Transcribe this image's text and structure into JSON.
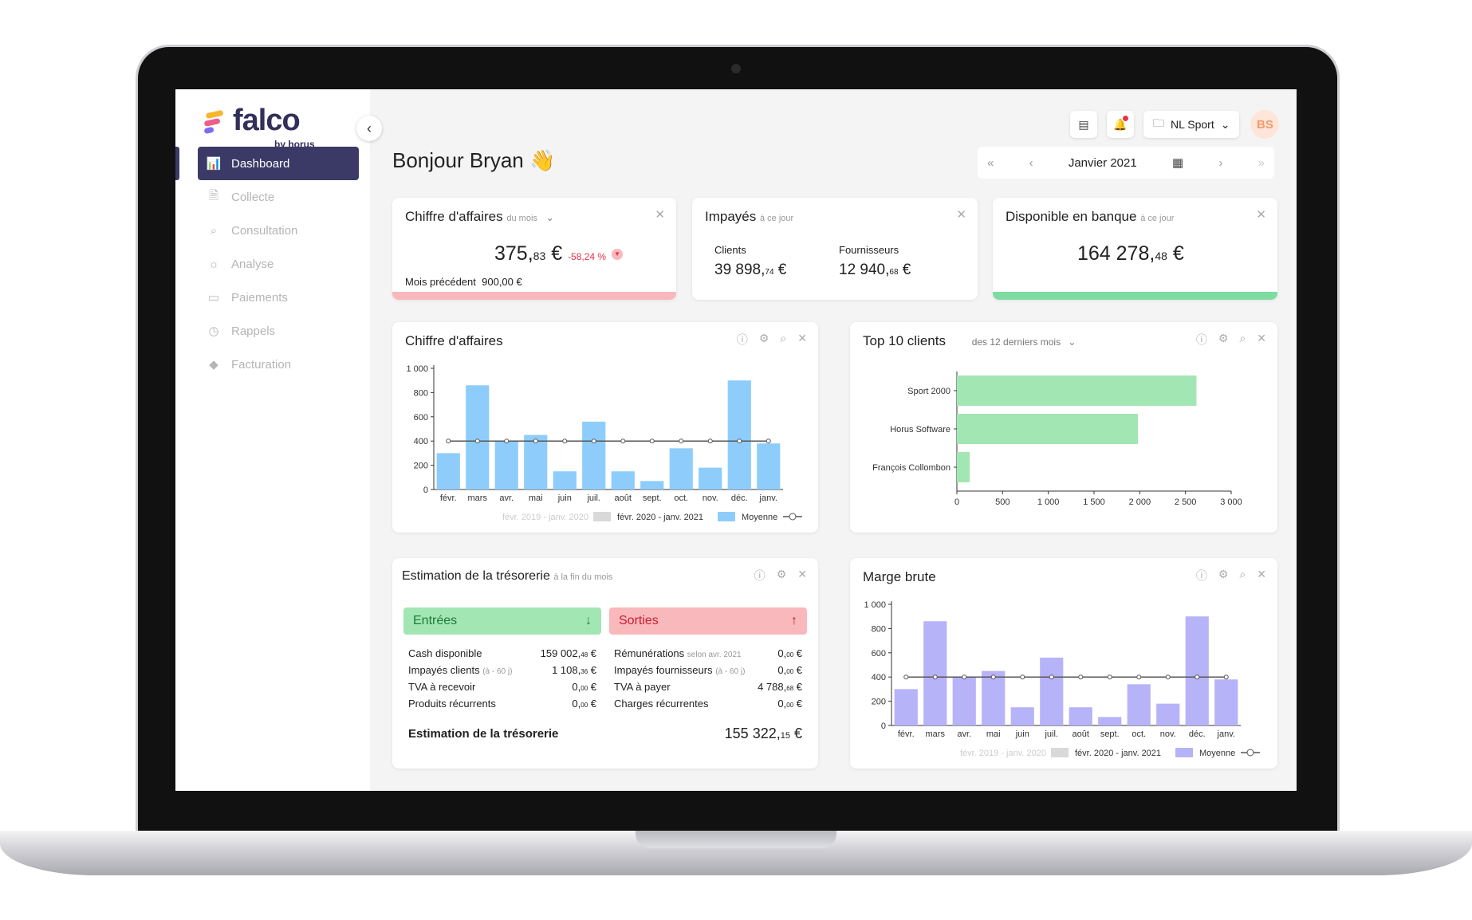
{
  "brand": {
    "name": "falco",
    "sub": "by horus"
  },
  "sidebar": {
    "items": [
      {
        "label": "Dashboard",
        "icon": "chart-icon"
      },
      {
        "label": "Collecte",
        "icon": "file-icon"
      },
      {
        "label": "Consultation",
        "icon": "zoom-icon"
      },
      {
        "label": "Analyse",
        "icon": "bulb-icon"
      },
      {
        "label": "Paiements",
        "icon": "card-icon"
      },
      {
        "label": "Rappels",
        "icon": "clock-icon"
      },
      {
        "label": "Facturation",
        "icon": "bag-icon"
      }
    ]
  },
  "header": {
    "greeting": "Bonjour Bryan",
    "company": "NL Sport",
    "avatar": "BS",
    "month": "Janvier 2021"
  },
  "kpi_ca": {
    "title": "Chiffre d'affaires",
    "sub": "du mois",
    "value_int": "375,",
    "value_dec": "83",
    "value_cur": " €",
    "pct": "-58,24 %",
    "prev_label": "Mois précédent",
    "prev_value": "900,00 €"
  },
  "kpi_impayes": {
    "title": "Impayés",
    "sub": "à ce jour",
    "clients_label": "Clients",
    "clients_int": "39 898,",
    "clients_dec": "74",
    "fourn_label": "Fournisseurs",
    "fourn_int": "12 940,",
    "fourn_dec": "68",
    "cur": " €"
  },
  "kpi_banque": {
    "title": "Disponible en banque",
    "sub": "à ce jour",
    "value_int": "164 278,",
    "value_dec": "48",
    "value_cur": " €"
  },
  "chart_ca_card": {
    "title": "Chiffre d'affaires"
  },
  "chart_top_card": {
    "title": "Top 10 clients",
    "period": "des 12 derniers mois"
  },
  "chart_marge_card": {
    "title": "Marge brute"
  },
  "legend": {
    "prev": "févr. 2019 - janv. 2020",
    "curr": "févr. 2020 - janv. 2021",
    "avg": "Moyenne"
  },
  "colors": {
    "primary": "#3b3a67",
    "ca_bar": "#8ecdfb",
    "marge_bar": "#b7b3f8",
    "top_bar": "#a2e6b4",
    "ca_accent": "#f9b8bc",
    "bank_accent": "#7fdca0",
    "in_bg": "#a2e6b4",
    "out_bg": "#f9b8bc"
  },
  "chart_data": [
    {
      "type": "bar",
      "title": "Chiffre d'affaires",
      "categories": [
        "févr.",
        "mars",
        "avr.",
        "mai",
        "juin",
        "juil.",
        "août",
        "sept.",
        "oct.",
        "nov.",
        "déc.",
        "janv."
      ],
      "series": [
        {
          "name": "févr. 2020 - janv. 2021",
          "values": [
            300,
            860,
            400,
            450,
            150,
            560,
            150,
            70,
            340,
            180,
            900,
            380
          ]
        },
        {
          "name": "Moyenne",
          "values": [
            400,
            400,
            400,
            400,
            400,
            400,
            400,
            400,
            400,
            400,
            400,
            400
          ]
        }
      ],
      "yticks": [
        "0",
        "200",
        "400",
        "600",
        "800",
        "1 000"
      ],
      "ylim": [
        0,
        1000
      ]
    },
    {
      "type": "bar",
      "title": "Top 10 clients",
      "categories": [
        "Sport 2000",
        "Horus Software",
        "François Collombon"
      ],
      "values": [
        2620,
        1980,
        140
      ],
      "xticks": [
        "0",
        "500",
        "1 000",
        "1 500",
        "2 000",
        "2 500",
        "3 000"
      ],
      "xlim": [
        0,
        3000
      ]
    },
    {
      "type": "bar",
      "title": "Marge brute",
      "categories": [
        "févr.",
        "mars",
        "avr.",
        "mai",
        "juin",
        "juil.",
        "août",
        "sept.",
        "oct.",
        "nov.",
        "déc.",
        "janv."
      ],
      "series": [
        {
          "name": "févr. 2020 - janv. 2021",
          "values": [
            300,
            860,
            400,
            450,
            150,
            560,
            150,
            70,
            340,
            180,
            900,
            380
          ]
        },
        {
          "name": "Moyenne",
          "values": [
            400,
            400,
            400,
            400,
            400,
            400,
            400,
            400,
            400,
            400,
            400,
            400
          ]
        }
      ],
      "yticks": [
        "0",
        "200",
        "400",
        "600",
        "800",
        "1 000"
      ],
      "ylim": [
        0,
        1000
      ]
    }
  ],
  "treasury": {
    "title": "Estimation de la trésorerie",
    "sub": "à la fin du mois",
    "in_label": "Entrées",
    "out_label": "Sorties",
    "in_rows": [
      {
        "label": "Cash disponible",
        "sub": "",
        "int": "159 002,",
        "dec": "48",
        "cur": " €"
      },
      {
        "label": "Impayés clients",
        "sub": "(à - 60 j)",
        "int": "1 108,",
        "dec": "36",
        "cur": " €"
      },
      {
        "label": "TVA à recevoir",
        "sub": "",
        "int": "0,",
        "dec": "00",
        "cur": " €"
      },
      {
        "label": "Produits récurrents",
        "sub": "",
        "int": "0,",
        "dec": "00",
        "cur": " €"
      }
    ],
    "out_rows": [
      {
        "label": "Rémunérations",
        "sub": "selon avr. 2021",
        "int": "0,",
        "dec": "00",
        "cur": " €"
      },
      {
        "label": "Impayés fournisseurs",
        "sub": "(à - 60 j)",
        "int": "0,",
        "dec": "00",
        "cur": " €"
      },
      {
        "label": "TVA à payer",
        "sub": "",
        "int": "4 788,",
        "dec": "68",
        "cur": " €"
      },
      {
        "label": "Charges récurrentes",
        "sub": "",
        "int": "0,",
        "dec": "00",
        "cur": " €"
      }
    ],
    "total_label": "Estimation de la trésorerie",
    "total_int": "155 322,",
    "total_dec": "15",
    "total_cur": " €"
  }
}
